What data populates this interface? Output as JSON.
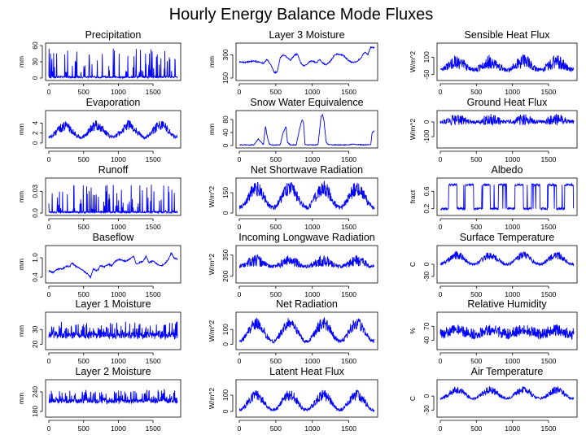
{
  "title": "Hourly Energy Balance Mode Fluxes",
  "colors": {
    "series": "#0000ff",
    "overlay": "#ff0000",
    "axis": "#000000",
    "background": "#ffffff"
  },
  "x_ticks": [
    "0",
    "500",
    "1000",
    "1500"
  ],
  "x_range": [
    0,
    1850
  ],
  "chart_data": [
    {
      "type": "line",
      "title": "Precipitation",
      "ylabel": "mm",
      "yticks": [
        "0",
        "30",
        "60"
      ],
      "ylim": [
        0,
        60
      ],
      "kind": "spiky",
      "base": 0,
      "amp": 35,
      "noise": 1,
      "seed": 1,
      "seasonal": 0
    },
    {
      "type": "line",
      "title": "Layer 3 Moisture",
      "ylabel": "mm",
      "yticks": [
        "150",
        "300"
      ],
      "ylim": [
        150,
        360
      ],
      "kind": "smooth",
      "base": 260,
      "amp": 70,
      "noise": 4,
      "seed": 2,
      "seasonal": 0,
      "points": [
        [
          0,
          255
        ],
        [
          80,
          250
        ],
        [
          180,
          260
        ],
        [
          260,
          255
        ],
        [
          330,
          245
        ],
        [
          380,
          270
        ],
        [
          440,
          230
        ],
        [
          480,
          185
        ],
        [
          520,
          190
        ],
        [
          560,
          280
        ],
        [
          600,
          300
        ],
        [
          640,
          290
        ],
        [
          700,
          265
        ],
        [
          760,
          300
        ],
        [
          800,
          305
        ],
        [
          840,
          250
        ],
        [
          880,
          230
        ],
        [
          920,
          235
        ],
        [
          960,
          255
        ],
        [
          1000,
          260
        ],
        [
          1060,
          250
        ],
        [
          1100,
          270
        ],
        [
          1140,
          250
        ],
        [
          1180,
          235
        ],
        [
          1240,
          255
        ],
        [
          1300,
          295
        ],
        [
          1340,
          305
        ],
        [
          1380,
          300
        ],
        [
          1420,
          300
        ],
        [
          1480,
          270
        ],
        [
          1540,
          250
        ],
        [
          1600,
          255
        ],
        [
          1660,
          275
        ],
        [
          1720,
          320
        ],
        [
          1760,
          300
        ],
        [
          1800,
          350
        ],
        [
          1850,
          345
        ]
      ]
    },
    {
      "type": "line",
      "title": "Sensible Heat Flux",
      "ylabel": "W/m^2",
      "yticks": [
        "-50",
        "100"
      ],
      "ylim": [
        -80,
        200
      ],
      "kind": "seasonal",
      "base": -10,
      "amp": 70,
      "noise": 45,
      "seed": 3,
      "seasonal": 1
    },
    {
      "type": "line",
      "title": "Evaporation",
      "ylabel": "mm",
      "yticks": [
        "0",
        "2",
        "4"
      ],
      "ylim": [
        -0.5,
        6
      ],
      "kind": "seasonal",
      "base": 1.2,
      "amp": 2.3,
      "noise": 0.8,
      "seed": 4,
      "seasonal": 1
    },
    {
      "type": "line",
      "title": "Snow Water Equivalence",
      "ylabel": "mm",
      "yticks": [
        "0",
        "40",
        "80"
      ],
      "ylim": [
        0,
        100
      ],
      "kind": "smooth",
      "base": 0,
      "amp": 0,
      "noise": 1,
      "seed": 5,
      "seasonal": 0,
      "points": [
        [
          0,
          2
        ],
        [
          200,
          2
        ],
        [
          260,
          20
        ],
        [
          300,
          10
        ],
        [
          330,
          3
        ],
        [
          360,
          60
        ],
        [
          380,
          30
        ],
        [
          410,
          5
        ],
        [
          440,
          2
        ],
        [
          560,
          2
        ],
        [
          600,
          40
        ],
        [
          640,
          58
        ],
        [
          660,
          10
        ],
        [
          700,
          2
        ],
        [
          780,
          2
        ],
        [
          830,
          55
        ],
        [
          860,
          80
        ],
        [
          880,
          70
        ],
        [
          900,
          3
        ],
        [
          940,
          2
        ],
        [
          1020,
          2
        ],
        [
          1060,
          2
        ],
        [
          1080,
          5
        ],
        [
          1120,
          90
        ],
        [
          1140,
          95
        ],
        [
          1160,
          75
        ],
        [
          1190,
          10
        ],
        [
          1220,
          3
        ],
        [
          1300,
          2
        ],
        [
          1500,
          2
        ],
        [
          1560,
          5
        ],
        [
          1600,
          3
        ],
        [
          1700,
          2
        ],
        [
          1800,
          3
        ],
        [
          1820,
          40
        ],
        [
          1850,
          45
        ]
      ]
    },
    {
      "type": "line",
      "title": "Ground Heat Flux",
      "ylabel": "W/m^2",
      "yticks": [
        "-100",
        "0"
      ],
      "ylim": [
        -160,
        60
      ],
      "kind": "seasonal",
      "base": 0,
      "amp": 15,
      "noise": 28,
      "seed": 6,
      "seasonal": 1
    },
    {
      "type": "line",
      "title": "Runoff",
      "ylabel": "mm",
      "yticks": [
        "0.0",
        "0.03"
      ],
      "ylim": [
        0,
        0.045
      ],
      "kind": "spiky",
      "base": 0,
      "amp": 0.025,
      "noise": 0.001,
      "seed": 7,
      "seasonal": 0
    },
    {
      "type": "line",
      "title": "Net Shortwave Radiation",
      "ylabel": "W/m^2",
      "yticks": [
        "0",
        "150"
      ],
      "ylim": [
        0,
        240
      ],
      "kind": "seasonal",
      "base": 40,
      "amp": 140,
      "noise": 40,
      "seed": 8,
      "seasonal": 1
    },
    {
      "type": "line",
      "title": "Albedo",
      "ylabel": "fract",
      "yticks": [
        "0.2",
        "0.6"
      ],
      "ylim": [
        0.1,
        0.85
      ],
      "kind": "square",
      "base": 0.2,
      "amp": 0.75,
      "noise": 0.05,
      "seed": 9,
      "seasonal": 0
    },
    {
      "type": "line",
      "title": "Baseflow",
      "ylabel": "mm",
      "yticks": [
        "0.4",
        "1.0"
      ],
      "ylim": [
        0.3,
        1.3
      ],
      "kind": "smooth",
      "base": 0.6,
      "amp": 0,
      "noise": 0.02,
      "seed": 10,
      "seasonal": 0,
      "points": [
        [
          0,
          0.6
        ],
        [
          60,
          0.55
        ],
        [
          120,
          0.65
        ],
        [
          200,
          0.66
        ],
        [
          260,
          0.75
        ],
        [
          300,
          0.72
        ],
        [
          330,
          0.85
        ],
        [
          380,
          0.75
        ],
        [
          420,
          0.7
        ],
        [
          470,
          0.65
        ],
        [
          520,
          0.55
        ],
        [
          560,
          0.5
        ],
        [
          600,
          0.4
        ],
        [
          640,
          0.65
        ],
        [
          700,
          0.6
        ],
        [
          740,
          0.75
        ],
        [
          800,
          0.72
        ],
        [
          860,
          0.8
        ],
        [
          900,
          0.75
        ],
        [
          960,
          0.9
        ],
        [
          1020,
          0.95
        ],
        [
          1080,
          0.9
        ],
        [
          1120,
          0.9
        ],
        [
          1160,
          0.95
        ],
        [
          1220,
          1.05
        ],
        [
          1260,
          0.8
        ],
        [
          1300,
          0.85
        ],
        [
          1360,
          0.9
        ],
        [
          1400,
          1.05
        ],
        [
          1440,
          0.85
        ],
        [
          1500,
          0.9
        ],
        [
          1560,
          0.8
        ],
        [
          1620,
          0.75
        ],
        [
          1680,
          0.85
        ],
        [
          1720,
          0.95
        ],
        [
          1760,
          1.15
        ],
        [
          1800,
          1.0
        ],
        [
          1850,
          0.95
        ]
      ]
    },
    {
      "type": "line",
      "title": "Incoming Longwave Radiation",
      "ylabel": "W/m^2",
      "yticks": [
        "200",
        "350"
      ],
      "ylim": [
        170,
        400
      ],
      "kind": "seasonal",
      "base": 270,
      "amp": 40,
      "noise": 30,
      "seed": 11,
      "seasonal": 1
    },
    {
      "type": "line",
      "title": "Surface Temperature",
      "ylabel": "C",
      "yticks": [
        "-30",
        "0"
      ],
      "ylim": [
        -40,
        40
      ],
      "kind": "seasonal",
      "base": 0,
      "amp": 22,
      "noise": 7,
      "seed": 12,
      "seasonal": 1
    },
    {
      "type": "line",
      "title": "Layer 1 Moisture",
      "ylabel": "mm",
      "yticks": [
        "20",
        "30"
      ],
      "ylim": [
        18,
        40
      ],
      "kind": "spiky2",
      "base": 24,
      "amp": 12,
      "noise": 2,
      "seed": 13,
      "seasonal": 0
    },
    {
      "type": "line",
      "title": "Net Radiation",
      "ylabel": "W/m^2",
      "yticks": [
        "0",
        "100"
      ],
      "ylim": [
        -20,
        200
      ],
      "kind": "seasonal",
      "base": 20,
      "amp": 120,
      "noise": 30,
      "seed": 14,
      "seasonal": 1
    },
    {
      "type": "line",
      "title": "Relative Humidity",
      "ylabel": "%",
      "yticks": [
        "40",
        "70"
      ],
      "ylim": [
        25,
        95
      ],
      "kind": "noisy",
      "base": 58,
      "amp": 8,
      "noise": 12,
      "seed": 15,
      "seasonal": 1
    },
    {
      "type": "line",
      "title": "Layer 2 Moisture",
      "ylabel": "mm",
      "yticks": [
        "180",
        "240"
      ],
      "ylim": [
        170,
        270
      ],
      "kind": "spiky2",
      "base": 205,
      "amp": 40,
      "noise": 6,
      "seed": 16,
      "seasonal": 0
    },
    {
      "type": "line",
      "title": "Latent Heat Flux",
      "ylabel": "W/m^2",
      "yticks": [
        "0",
        "100"
      ],
      "ylim": [
        -20,
        180
      ],
      "kind": "seasonal",
      "base": 10,
      "amp": 90,
      "noise": 25,
      "seed": 17,
      "seasonal": 1
    },
    {
      "type": "line",
      "title": "Air Temperature",
      "ylabel": "C",
      "yticks": [
        "-30",
        "0"
      ],
      "ylim": [
        -40,
        30
      ],
      "kind": "seasonal",
      "base": -5,
      "amp": 18,
      "noise": 6,
      "seed": 18,
      "seasonal": 1
    }
  ]
}
